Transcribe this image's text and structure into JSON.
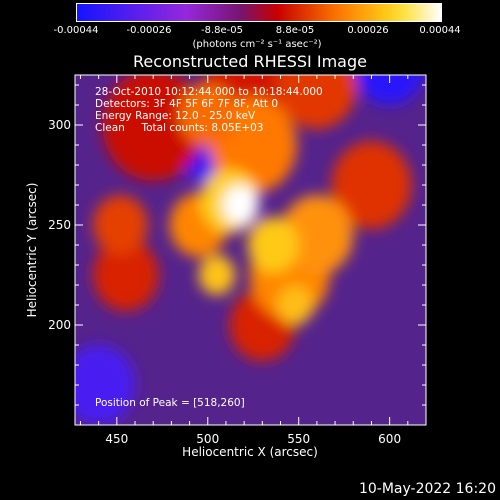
{
  "colorbar": {
    "tick_labels": [
      "-0.00044",
      "-0.00026",
      "-8.8e-05",
      "8.8e-05",
      "0.00026",
      "0.00044"
    ],
    "unit": "(photons cm⁻² s⁻¹ asec⁻²)",
    "range": [
      -0.00044,
      0.00044
    ]
  },
  "chart_data": {
    "type": "heatmap",
    "title": "Reconstructed RHESSI Image",
    "xlabel": "Heliocentric X (arcsec)",
    "ylabel": "Heliocentric Y (arcsec)",
    "xlim": [
      427,
      620
    ],
    "ylim": [
      150,
      325
    ],
    "x_ticks": [
      450,
      500,
      550,
      600
    ],
    "y_ticks": [
      200,
      250,
      300
    ],
    "grid": false,
    "colormap": "blue-purple-red-orange-yellow-white",
    "annotations": {
      "time_range": "28-Oct-2010 10:12:44.000 to 10:18:44.000",
      "detectors": "Detectors: 3F 4F 5F 6F 7F 8F, Att 0",
      "energy_range": "Energy Range: 12.0 - 25.0 keV",
      "method": "Clean     Total counts: 8.05E+03",
      "peak": "Position of Peak = [518,260]"
    },
    "peak": [
      518,
      260
    ]
  },
  "footer": {
    "date_stamp": "10-May-2022 16:20"
  }
}
